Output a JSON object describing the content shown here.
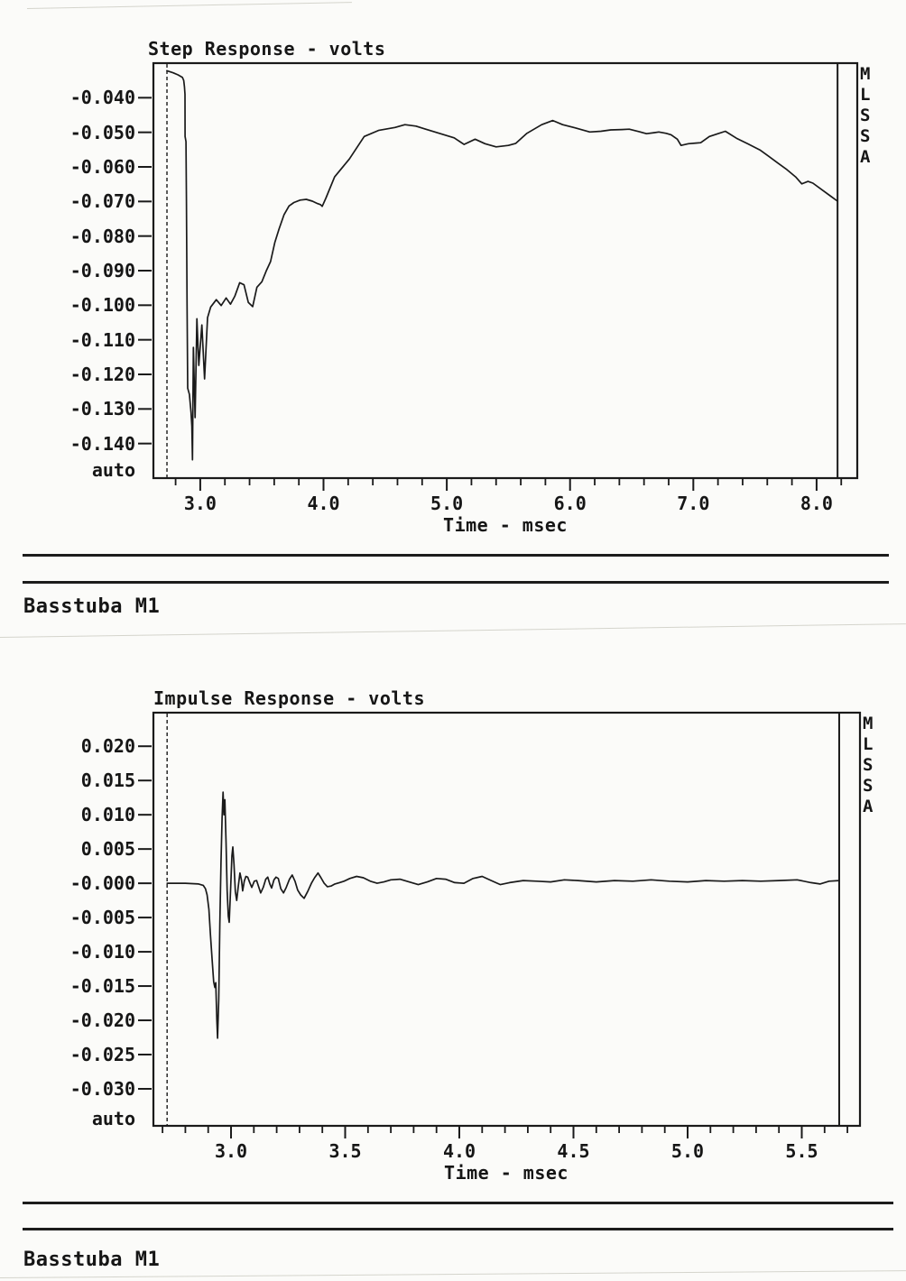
{
  "page_labels": {
    "step_footer": "Basstuba M1",
    "impulse_footer": "Basstuba M1"
  },
  "chart_data": [
    {
      "type": "line",
      "title": "Step Response - volts",
      "xlabel": "Time - msec",
      "side_label": "MLSSA",
      "y_mode_label": "auto",
      "grid": false,
      "x_range": [
        2.62,
        8.33
      ],
      "y_range": [
        -0.15,
        -0.03
      ],
      "x_major_ticks": [
        3.0,
        4.0,
        5.0,
        6.0,
        7.0,
        8.0
      ],
      "x_major_tick_labels": [
        "3.0",
        "4.0",
        "5.0",
        "6.0",
        "7.0",
        "8.0"
      ],
      "x_minor_step": 0.2,
      "x_major_step": 1.0,
      "y_ticks": [
        -0.04,
        -0.05,
        -0.06,
        -0.07,
        -0.08,
        -0.09,
        -0.1,
        -0.11,
        -0.12,
        -0.13,
        -0.14
      ],
      "y_tick_labels": [
        "-0.040",
        "-0.050",
        "-0.060",
        "-0.070",
        "-0.080",
        "-0.090",
        "-0.100",
        "-0.110",
        "-0.120",
        "-0.130",
        "-0.140"
      ],
      "marker_time": 2.73,
      "cursor_time": 8.17,
      "series": [
        {
          "name": "step response",
          "points": [
            [
              2.73,
              -0.0322
            ],
            [
              2.78,
              -0.0328
            ],
            [
              2.82,
              -0.0334
            ],
            [
              2.855,
              -0.0341
            ],
            [
              2.866,
              -0.035
            ],
            [
              2.872,
              -0.0368
            ],
            [
              2.876,
              -0.039
            ],
            [
              2.877,
              -0.0512
            ],
            [
              2.884,
              -0.0527
            ],
            [
              2.888,
              -0.07
            ],
            [
              2.893,
              -0.1
            ],
            [
              2.898,
              -0.124
            ],
            [
              2.912,
              -0.1258
            ],
            [
              2.925,
              -0.131
            ],
            [
              2.932,
              -0.135
            ],
            [
              2.937,
              -0.1447
            ],
            [
              2.944,
              -0.1122
            ],
            [
              2.958,
              -0.1325
            ],
            [
              2.973,
              -0.1039
            ],
            [
              2.988,
              -0.1174
            ],
            [
              3.013,
              -0.1057
            ],
            [
              3.035,
              -0.1213
            ],
            [
              3.059,
              -0.1036
            ],
            [
              3.085,
              -0.1005
            ],
            [
              3.13,
              -0.0984
            ],
            [
              3.17,
              -0.1001
            ],
            [
              3.21,
              -0.0979
            ],
            [
              3.245,
              -0.0997
            ],
            [
              3.28,
              -0.0974
            ],
            [
              3.32,
              -0.0935
            ],
            [
              3.355,
              -0.0941
            ],
            [
              3.39,
              -0.0992
            ],
            [
              3.425,
              -0.1004
            ],
            [
              3.46,
              -0.0948
            ],
            [
              3.5,
              -0.0932
            ],
            [
              3.535,
              -0.0901
            ],
            [
              3.57,
              -0.0874
            ],
            [
              3.605,
              -0.0818
            ],
            [
              3.64,
              -0.0779
            ],
            [
              3.68,
              -0.0738
            ],
            [
              3.72,
              -0.0713
            ],
            [
              3.76,
              -0.0703
            ],
            [
              3.81,
              -0.0696
            ],
            [
              3.86,
              -0.0694
            ],
            [
              3.91,
              -0.0699
            ],
            [
              3.95,
              -0.0706
            ],
            [
              3.975,
              -0.0709
            ],
            [
              3.99,
              -0.0714
            ],
            [
              4.02,
              -0.069
            ],
            [
              4.09,
              -0.0629
            ],
            [
              4.21,
              -0.0577
            ],
            [
              4.33,
              -0.0512
            ],
            [
              4.45,
              -0.0494
            ],
            [
              4.58,
              -0.0486
            ],
            [
              4.66,
              -0.0478
            ],
            [
              4.75,
              -0.0482
            ],
            [
              4.82,
              -0.049
            ],
            [
              4.94,
              -0.0503
            ],
            [
              5.06,
              -0.0516
            ],
            [
              5.14,
              -0.0535
            ],
            [
              5.23,
              -0.052
            ],
            [
              5.31,
              -0.0533
            ],
            [
              5.4,
              -0.0542
            ],
            [
              5.5,
              -0.0538
            ],
            [
              5.56,
              -0.0532
            ],
            [
              5.65,
              -0.0503
            ],
            [
              5.77,
              -0.0478
            ],
            [
              5.86,
              -0.0466
            ],
            [
              5.94,
              -0.0478
            ],
            [
              6.04,
              -0.0487
            ],
            [
              6.16,
              -0.0499
            ],
            [
              6.25,
              -0.0497
            ],
            [
              6.33,
              -0.0493
            ],
            [
              6.42,
              -0.0492
            ],
            [
              6.48,
              -0.0491
            ],
            [
              6.56,
              -0.0498
            ],
            [
              6.62,
              -0.0504
            ],
            [
              6.68,
              -0.0501
            ],
            [
              6.72,
              -0.0499
            ],
            [
              6.78,
              -0.0503
            ],
            [
              6.82,
              -0.0507
            ],
            [
              6.87,
              -0.052
            ],
            [
              6.9,
              -0.0538
            ],
            [
              6.96,
              -0.0533
            ],
            [
              7.02,
              -0.0531
            ],
            [
              7.06,
              -0.053
            ],
            [
              7.13,
              -0.0512
            ],
            [
              7.2,
              -0.0504
            ],
            [
              7.26,
              -0.0497
            ],
            [
              7.35,
              -0.0517
            ],
            [
              7.44,
              -0.0533
            ],
            [
              7.54,
              -0.0551
            ],
            [
              7.61,
              -0.0569
            ],
            [
              7.69,
              -0.059
            ],
            [
              7.76,
              -0.0608
            ],
            [
              7.83,
              -0.0629
            ],
            [
              7.88,
              -0.0649
            ],
            [
              7.93,
              -0.0642
            ],
            [
              7.97,
              -0.0647
            ],
            [
              8.05,
              -0.0668
            ],
            [
              8.12,
              -0.0686
            ],
            [
              8.17,
              -0.0699
            ]
          ]
        }
      ]
    },
    {
      "type": "line",
      "title": "Impulse Response - volts",
      "xlabel": "Time - msec",
      "side_label": "MLSSA",
      "y_mode_label": "auto",
      "grid": false,
      "x_range": [
        2.66,
        5.755
      ],
      "y_range": [
        -0.0354,
        0.0249
      ],
      "x_major_ticks": [
        3.0,
        3.5,
        4.0,
        4.5,
        5.0,
        5.5
      ],
      "x_major_tick_labels": [
        "3.0",
        "3.5",
        "4.0",
        "4.5",
        "5.0",
        "5.5"
      ],
      "x_minor_step": 0.1,
      "x_major_step": 0.5,
      "y_ticks": [
        0.02,
        0.015,
        0.01,
        0.005,
        0.0,
        -0.005,
        -0.01,
        -0.015,
        -0.02,
        -0.025,
        -0.03
      ],
      "y_tick_labels": [
        "0.020",
        "0.015",
        "0.010",
        "0.005",
        "-0.000",
        "-0.005",
        "-0.010",
        "-0.015",
        "-0.020",
        "-0.025",
        "-0.030"
      ],
      "marker_time": 2.72,
      "cursor_time": 5.664,
      "series": [
        {
          "name": "impulse response",
          "points": [
            [
              2.72,
              0.0
            ],
            [
              2.8,
              0.0
            ],
            [
              2.858,
              -0.0001
            ],
            [
              2.878,
              -0.0003
            ],
            [
              2.888,
              -0.0008
            ],
            [
              2.895,
              -0.0017
            ],
            [
              2.903,
              -0.0038
            ],
            [
              2.91,
              -0.0075
            ],
            [
              2.917,
              -0.011
            ],
            [
              2.924,
              -0.0144
            ],
            [
              2.929,
              -0.0152
            ],
            [
              2.933,
              -0.0145
            ],
            [
              2.938,
              -0.02
            ],
            [
              2.941,
              -0.0226
            ],
            [
              2.946,
              -0.017
            ],
            [
              2.951,
              -0.006
            ],
            [
              2.956,
              0.003
            ],
            [
              2.961,
              0.0095
            ],
            [
              2.965,
              0.0133
            ],
            [
              2.969,
              0.01
            ],
            [
              2.973,
              0.0122
            ],
            [
              2.978,
              0.006
            ],
            [
              2.983,
              -0.001
            ],
            [
              2.988,
              -0.0048
            ],
            [
              2.992,
              -0.0057
            ],
            [
              2.998,
              -0.001
            ],
            [
              3.004,
              0.004
            ],
            [
              3.008,
              0.0053
            ],
            [
              3.013,
              0.0028
            ],
            [
              3.019,
              -0.0012
            ],
            [
              3.025,
              -0.0025
            ],
            [
              3.032,
              -0.0004
            ],
            [
              3.039,
              0.0015
            ],
            [
              3.046,
              0.0004
            ],
            [
              3.051,
              -0.0011
            ],
            [
              3.058,
              0.0003
            ],
            [
              3.065,
              0.001
            ],
            [
              3.073,
              0.0009
            ],
            [
              3.082,
              0.0001
            ],
            [
              3.091,
              -0.0006
            ],
            [
              3.102,
              0.0003
            ],
            [
              3.112,
              0.0004
            ],
            [
              3.121,
              -0.0005
            ],
            [
              3.13,
              -0.0014
            ],
            [
              3.141,
              -0.0006
            ],
            [
              3.152,
              0.0006
            ],
            [
              3.161,
              0.0009
            ],
            [
              3.17,
              -0.0001
            ],
            [
              3.178,
              -0.0007
            ],
            [
              3.188,
              0.0005
            ],
            [
              3.197,
              0.0009
            ],
            [
              3.207,
              0.0007
            ],
            [
              3.218,
              -0.0008
            ],
            [
              3.23,
              -0.0014
            ],
            [
              3.242,
              -0.0006
            ],
            [
              3.256,
              0.0006
            ],
            [
              3.268,
              0.0012
            ],
            [
              3.28,
              0.0003
            ],
            [
              3.292,
              -0.001
            ],
            [
              3.305,
              -0.0017
            ],
            [
              3.32,
              -0.0022
            ],
            [
              3.336,
              -0.0012
            ],
            [
              3.352,
              0.0
            ],
            [
              3.366,
              0.0008
            ],
            [
              3.381,
              0.0015
            ],
            [
              3.394,
              0.0008
            ],
            [
              3.408,
              0.0
            ],
            [
              3.422,
              -0.0005
            ],
            [
              3.438,
              -0.0004
            ],
            [
              3.455,
              -0.0001
            ],
            [
              3.475,
              0.0001
            ],
            [
              3.495,
              0.0003
            ],
            [
              3.52,
              0.0007
            ],
            [
              3.55,
              0.001
            ],
            [
              3.58,
              0.0008
            ],
            [
              3.61,
              0.0003
            ],
            [
              3.64,
              0.0
            ],
            [
              3.67,
              0.0002
            ],
            [
              3.7,
              0.0005
            ],
            [
              3.74,
              0.0006
            ],
            [
              3.78,
              0.0002
            ],
            [
              3.82,
              -0.0002
            ],
            [
              3.86,
              0.0002
            ],
            [
              3.9,
              0.0007
            ],
            [
              3.94,
              0.0006
            ],
            [
              3.98,
              0.0001
            ],
            [
              4.02,
              0.0
            ],
            [
              4.06,
              0.0007
            ],
            [
              4.1,
              0.001
            ],
            [
              4.14,
              0.0004
            ],
            [
              4.18,
              -0.0002
            ],
            [
              4.22,
              0.0001
            ],
            [
              4.28,
              0.0004
            ],
            [
              4.34,
              0.0003
            ],
            [
              4.4,
              0.0002
            ],
            [
              4.46,
              0.0005
            ],
            [
              4.52,
              0.0004
            ],
            [
              4.6,
              0.0002
            ],
            [
              4.68,
              0.0004
            ],
            [
              4.76,
              0.0003
            ],
            [
              4.84,
              0.0005
            ],
            [
              4.92,
              0.0003
            ],
            [
              5.0,
              0.0002
            ],
            [
              5.08,
              0.0004
            ],
            [
              5.16,
              0.0003
            ],
            [
              5.24,
              0.0004
            ],
            [
              5.32,
              0.0003
            ],
            [
              5.4,
              0.0004
            ],
            [
              5.48,
              0.0005
            ],
            [
              5.54,
              0.0001
            ],
            [
              5.58,
              -0.0001
            ],
            [
              5.62,
              0.0003
            ],
            [
              5.664,
              0.0004
            ]
          ]
        }
      ]
    }
  ]
}
